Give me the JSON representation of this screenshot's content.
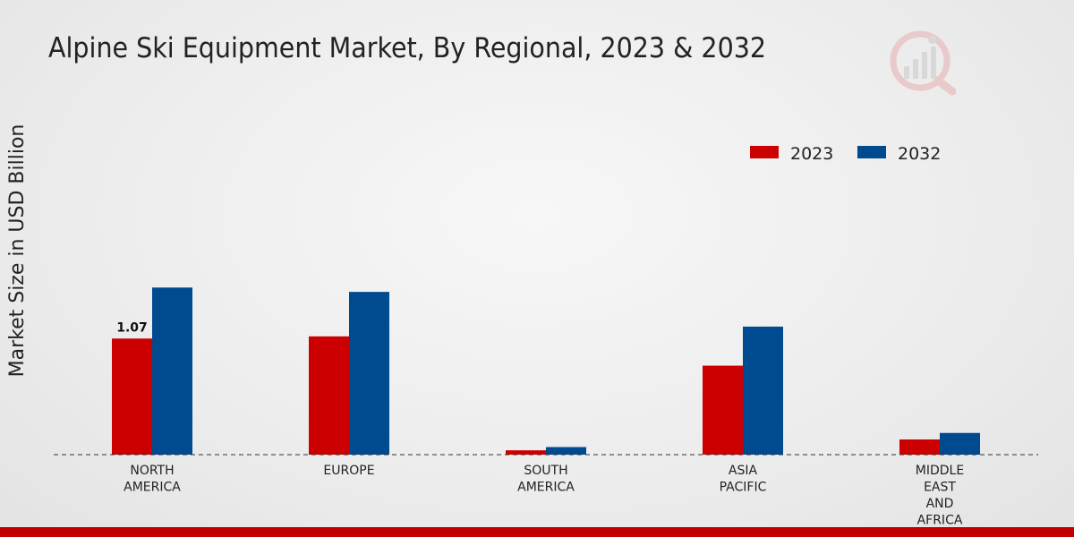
{
  "chart_data": {
    "type": "bar",
    "title": "Alpine Ski Equipment Market, By Regional, 2023 & 2032",
    "xlabel": "",
    "ylabel": "Market Size in USD Billion",
    "categories": [
      "NORTH\nAMERICA",
      "EUROPE",
      "SOUTH\nAMERICA",
      "ASIA\nPACIFIC",
      "MIDDLE\nEAST\nAND\nAFRICA"
    ],
    "series": [
      {
        "name": "2023",
        "color": "#cc0000",
        "values": [
          1.07,
          1.09,
          0.04,
          0.82,
          0.14
        ]
      },
      {
        "name": "2032",
        "color": "#004a8f",
        "values": [
          1.54,
          1.5,
          0.07,
          1.18,
          0.2
        ]
      }
    ],
    "data_labels": [
      {
        "series": 0,
        "index": 0,
        "text": "1.07"
      }
    ],
    "ylim": [
      0,
      3.2
    ],
    "grid": false,
    "legend_position": "top-right",
    "baseline_style": "dashed"
  }
}
